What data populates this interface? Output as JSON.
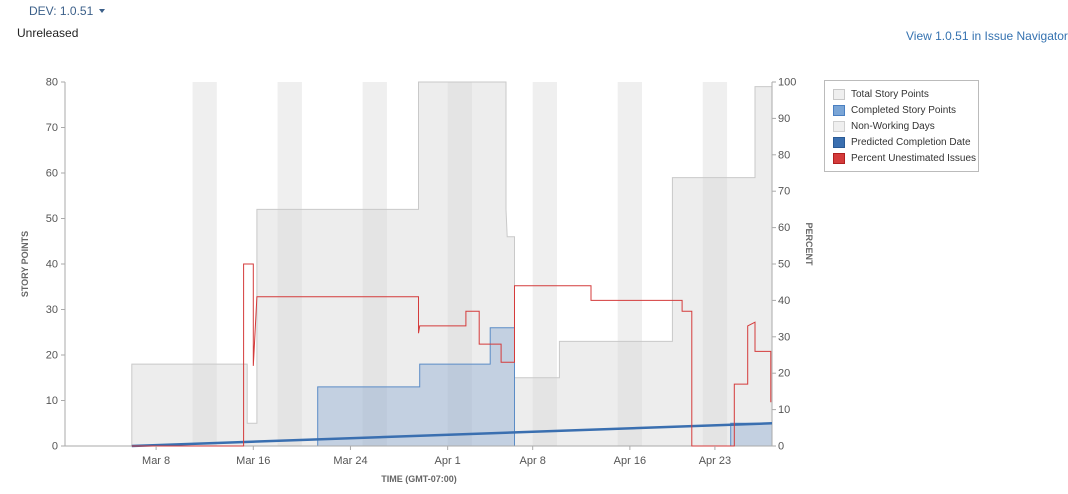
{
  "header": {
    "version_label": "DEV: 1.0.51",
    "status": "Unreleased",
    "view_link": "View 1.0.51 in Issue Navigator"
  },
  "legend": {
    "items": [
      {
        "label": "Total Story Points",
        "color": "#efefef",
        "border": "#c8c8c8"
      },
      {
        "label": "Completed Story Points",
        "color": "#7aa5d6",
        "border": "#4a7fc1"
      },
      {
        "label": "Non-Working Days",
        "color": "#efefef",
        "border": "#d0d0d0"
      },
      {
        "label": "Predicted Completion Date",
        "color": "#3a6fb0",
        "border": "#2a5a95"
      },
      {
        "label": "Percent Unestimated Issues",
        "color": "#d43b3b",
        "border": "#b02020"
      }
    ]
  },
  "chart_data": {
    "type": "area",
    "xlabel": "TIME (GMT-07:00)",
    "ylabel": "STORY POINTS",
    "y2label": "PERCENT",
    "xlim": [
      0.5,
      58.7
    ],
    "ylim": [
      0,
      80
    ],
    "y2lim": [
      0,
      100
    ],
    "yticks": [
      0,
      10,
      20,
      30,
      40,
      50,
      60,
      70,
      80
    ],
    "y2ticks": [
      0,
      10,
      20,
      30,
      40,
      50,
      60,
      70,
      80,
      90,
      100
    ],
    "xticks": [
      {
        "day": 8,
        "label": "Mar 8"
      },
      {
        "day": 16,
        "label": "Mar 16"
      },
      {
        "day": 24,
        "label": "Mar 24"
      },
      {
        "day": 32,
        "label": "Apr 1"
      },
      {
        "day": 39,
        "label": "Apr 8"
      },
      {
        "day": 47,
        "label": "Apr 16"
      },
      {
        "day": 54,
        "label": "Apr 23"
      }
    ],
    "non_working_days": [
      [
        11,
        13
      ],
      [
        18,
        20
      ],
      [
        25,
        27
      ],
      [
        32,
        34
      ],
      [
        39,
        41
      ],
      [
        46,
        48
      ],
      [
        53,
        55
      ]
    ],
    "series": [
      {
        "name": "Total Story Points",
        "points": [
          [
            6,
            0
          ],
          [
            6,
            18
          ],
          [
            15.5,
            18
          ],
          [
            15.5,
            5
          ],
          [
            16.3,
            5
          ],
          [
            16.3,
            52
          ],
          [
            29.6,
            52
          ],
          [
            29.6,
            80
          ],
          [
            36.8,
            80
          ],
          [
            36.8,
            52
          ],
          [
            36.9,
            46
          ],
          [
            37.5,
            46
          ],
          [
            37.5,
            15
          ],
          [
            41.2,
            15
          ],
          [
            41.2,
            23
          ],
          [
            50.5,
            23
          ],
          [
            50.5,
            59
          ],
          [
            57.3,
            59
          ],
          [
            57.3,
            79
          ],
          [
            58.7,
            79
          ],
          [
            58.7,
            0
          ]
        ]
      },
      {
        "name": "Completed Story Points",
        "points": [
          [
            21.3,
            0
          ],
          [
            21.3,
            13
          ],
          [
            29.7,
            13
          ],
          [
            29.7,
            18
          ],
          [
            35.5,
            18
          ],
          [
            35.5,
            26
          ],
          [
            37.5,
            26
          ],
          [
            37.5,
            0
          ],
          [
            55.3,
            0
          ],
          [
            55.3,
            5
          ],
          [
            58.7,
            5
          ],
          [
            58.7,
            0
          ]
        ]
      },
      {
        "name": "Predicted Completion Date",
        "points": [
          [
            6,
            0
          ],
          [
            58.7,
            5
          ]
        ]
      },
      {
        "name": "Percent Unestimated Issues",
        "axis": "y2",
        "points": [
          [
            6,
            0
          ],
          [
            15.2,
            0
          ],
          [
            15.2,
            50
          ],
          [
            16,
            50
          ],
          [
            16,
            22
          ],
          [
            16.3,
            41
          ],
          [
            29.6,
            41
          ],
          [
            29.6,
            31
          ],
          [
            29.7,
            33
          ],
          [
            33.5,
            33
          ],
          [
            33.5,
            37
          ],
          [
            34.6,
            37
          ],
          [
            34.6,
            28
          ],
          [
            36.4,
            28
          ],
          [
            36.4,
            23
          ],
          [
            37.5,
            23
          ],
          [
            37.5,
            44
          ],
          [
            43.8,
            44
          ],
          [
            43.8,
            40
          ],
          [
            51.3,
            40
          ],
          [
            51.3,
            37
          ],
          [
            52.1,
            37
          ],
          [
            52.1,
            0
          ],
          [
            55.6,
            0
          ],
          [
            55.6,
            17
          ],
          [
            56.7,
            17
          ],
          [
            56.7,
            33
          ],
          [
            57.3,
            34
          ],
          [
            57.3,
            26
          ],
          [
            58.6,
            26
          ],
          [
            58.6,
            12
          ]
        ]
      }
    ]
  }
}
